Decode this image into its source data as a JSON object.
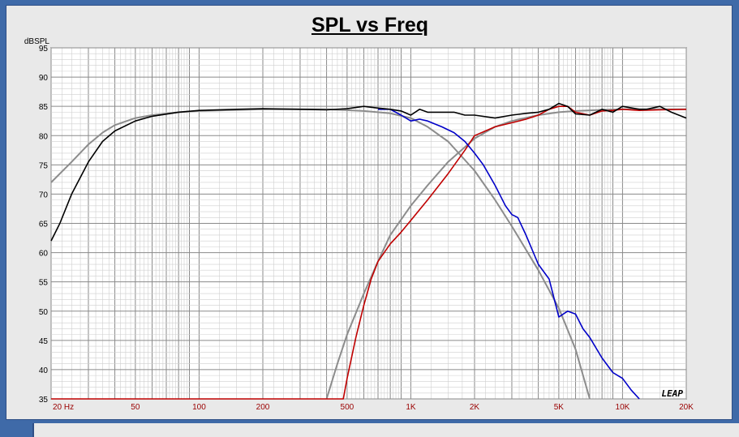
{
  "chart_data": {
    "type": "line",
    "title": "SPL vs Freq",
    "ylabel": "dBSPL",
    "xlabel": "",
    "x_scale": "log",
    "xlim": [
      20,
      20000
    ],
    "ylim": [
      35,
      95
    ],
    "grid": true,
    "y_ticks": [
      "35",
      "40",
      "45",
      "50",
      "55",
      "60",
      "65",
      "70",
      "75",
      "80",
      "85",
      "90",
      "95"
    ],
    "x_ticks": [
      {
        "value": 20,
        "label": "20  Hz"
      },
      {
        "value": 50,
        "label": "50"
      },
      {
        "value": 100,
        "label": "100"
      },
      {
        "value": 200,
        "label": "200"
      },
      {
        "value": 500,
        "label": "500"
      },
      {
        "value": 1000,
        "label": "1K"
      },
      {
        "value": 2000,
        "label": "2K"
      },
      {
        "value": 5000,
        "label": "5K"
      },
      {
        "value": 10000,
        "label": "10K"
      },
      {
        "value": 20000,
        "label": "20K"
      }
    ],
    "watermark": "LEAP",
    "series": [
      {
        "color": "#8c8c8c",
        "x": [
          20,
          25,
          30,
          35,
          40,
          50,
          60,
          80,
          100,
          200,
          400,
          600,
          800,
          1000,
          1200,
          1500,
          2000,
          2500,
          3000,
          4000,
          5000,
          6000,
          7000
        ],
        "y": [
          72,
          75.5,
          78.5,
          80.5,
          81.8,
          83,
          83.5,
          84,
          84.2,
          84.5,
          84.5,
          84.2,
          83.8,
          83,
          81.5,
          79,
          74,
          69,
          64.5,
          57,
          50.5,
          43.5,
          35
        ]
      },
      {
        "color": "#8c8c8c",
        "x": [
          400,
          450,
          500,
          600,
          700,
          800,
          1000,
          1200,
          1500,
          2000,
          2500,
          3000,
          4000,
          5000,
          6000,
          8000,
          10000,
          20000
        ],
        "y": [
          35,
          41,
          46,
          53,
          58.5,
          63,
          68,
          71.5,
          75.5,
          79.5,
          81.5,
          82.5,
          83.5,
          84,
          84.2,
          84.4,
          84.5,
          84.5
        ]
      },
      {
        "color": "#c00000",
        "x": [
          20,
          100,
          300,
          480,
          500,
          550,
          600,
          650,
          700,
          800,
          900,
          1000,
          1200,
          1500,
          1800,
          2000,
          2500,
          3000,
          3500,
          4000,
          4500,
          5000,
          5500,
          6000,
          7000,
          8000,
          9000,
          10000,
          12000,
          15000,
          20000
        ],
        "y": [
          35,
          35,
          35,
          35,
          38.5,
          45.5,
          51,
          55.5,
          58.5,
          61.5,
          63.5,
          65.5,
          69,
          73.5,
          77.5,
          80,
          81.5,
          82.2,
          82.8,
          83.5,
          84.5,
          85,
          85,
          84,
          83.5,
          84.2,
          84.3,
          84.5,
          84.3,
          84.4,
          84.5
        ]
      },
      {
        "color": "#0000c8",
        "x": [
          700,
          800,
          900,
          1000,
          1100,
          1200,
          1400,
          1600,
          1800,
          2000,
          2200,
          2500,
          2800,
          3000,
          3200,
          3500,
          4000,
          4500,
          5000,
          5500,
          6000,
          6500,
          7000,
          8000,
          9000,
          10000,
          11000,
          12000
        ],
        "y": [
          84.5,
          84.5,
          83.5,
          82.5,
          82.8,
          82.5,
          81.5,
          80.5,
          79,
          77,
          75,
          71.5,
          68,
          66.5,
          66,
          63,
          58,
          55.5,
          49,
          50,
          49.5,
          47,
          45.5,
          42,
          39.5,
          38.5,
          36.5,
          35
        ]
      },
      {
        "color": "#000000",
        "x": [
          20,
          22,
          25,
          30,
          35,
          40,
          50,
          60,
          80,
          100,
          150,
          200,
          300,
          400,
          500,
          600,
          700,
          800,
          900,
          1000,
          1100,
          1200,
          1400,
          1600,
          1800,
          2000,
          2500,
          3000,
          3500,
          4000,
          4500,
          5000,
          5500,
          6000,
          7000,
          8000,
          9000,
          10000,
          12000,
          13000,
          15000,
          17000,
          20000
        ],
        "y": [
          62,
          65,
          70,
          75.5,
          79,
          80.8,
          82.5,
          83.3,
          84,
          84.3,
          84.5,
          84.6,
          84.5,
          84.4,
          84.6,
          85,
          84.7,
          84.5,
          84.2,
          83.5,
          84.5,
          84,
          84,
          84,
          83.5,
          83.5,
          83,
          83.5,
          83.8,
          84,
          84.5,
          85.5,
          85,
          83.7,
          83.5,
          84.5,
          84,
          85,
          84.5,
          84.5,
          85,
          84,
          83
        ]
      }
    ]
  }
}
